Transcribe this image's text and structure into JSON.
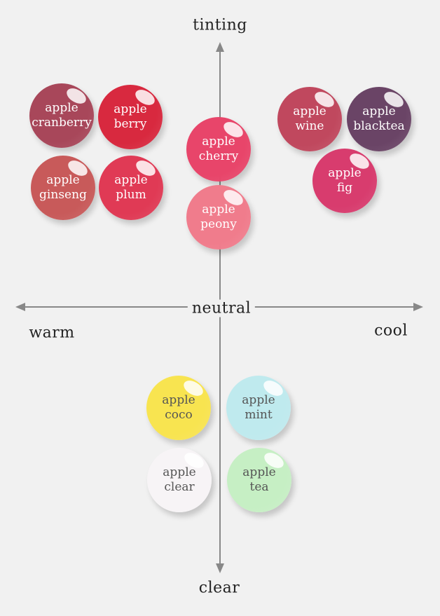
{
  "axes": {
    "top": "tinting",
    "bottom": "clear",
    "left": "warm",
    "right": "cool",
    "center": "neutral"
  },
  "swatches": [
    {
      "line1": "apple",
      "line2": "cranberry",
      "color": "#a8475a",
      "text_color": "#ffffff"
    },
    {
      "line1": "apple",
      "line2": "berry",
      "color": "#d8293f",
      "text_color": "#ffffff"
    },
    {
      "line1": "apple",
      "line2": "ginseng",
      "color": "#c85a5a",
      "text_color": "#ffffff"
    },
    {
      "line1": "apple",
      "line2": "plum",
      "color": "#e03a55",
      "text_color": "#ffffff"
    },
    {
      "line1": "apple",
      "line2": "cherry",
      "color": "#e8456a",
      "text_color": "#ffffff"
    },
    {
      "line1": "apple",
      "line2": "peony",
      "color": "#f07c8c",
      "text_color": "#ffffff"
    },
    {
      "line1": "apple",
      "line2": "wine",
      "color": "#c0485e",
      "text_color": "#ffffff"
    },
    {
      "line1": "apple",
      "line2": "blacktea",
      "color": "#6a4466",
      "text_color": "#ffffff"
    },
    {
      "line1": "apple",
      "line2": "fig",
      "color": "#d83c6e",
      "text_color": "#ffffff"
    },
    {
      "line1": "apple",
      "line2": "coco",
      "color": "#f8e450",
      "text_color": "#555555"
    },
    {
      "line1": "apple",
      "line2": "mint",
      "color": "#bfeaee",
      "text_color": "#555555"
    },
    {
      "line1": "apple",
      "line2": "clear",
      "color": "#f7f4f6",
      "text_color": "#555555"
    },
    {
      "line1": "apple",
      "line2": "tea",
      "color": "#c6efc4",
      "text_color": "#555555"
    }
  ]
}
